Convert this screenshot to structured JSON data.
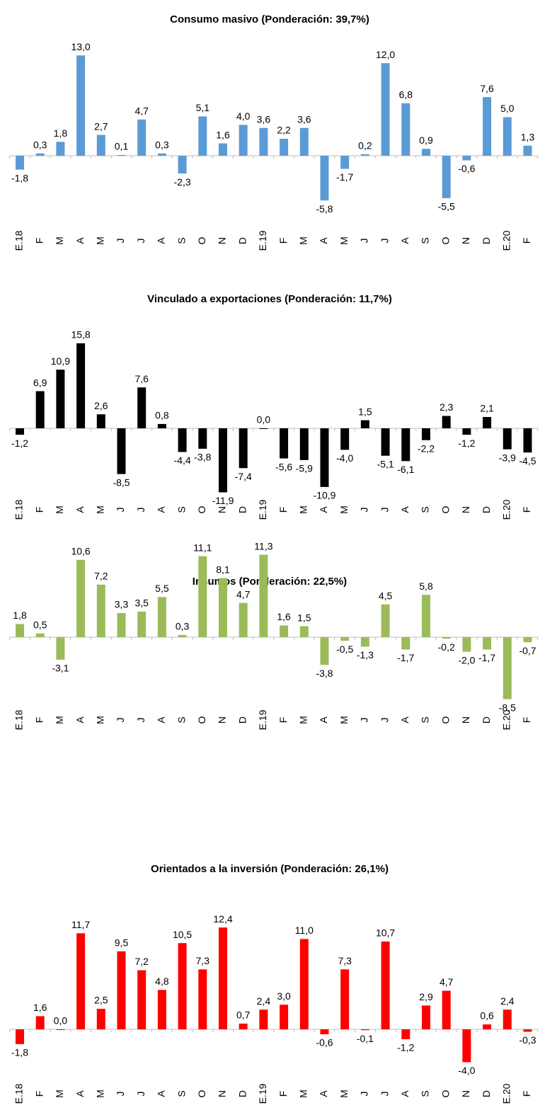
{
  "chart_data": [
    {
      "type": "bar",
      "title": "Consumo masivo (Ponderación: 39,7%)",
      "color": "#5b9bd5",
      "categories": [
        "E.18",
        "F",
        "M",
        "A",
        "M",
        "J",
        "J",
        "A",
        "S",
        "O",
        "N",
        "D",
        "E.19",
        "F",
        "M",
        "A",
        "M",
        "J",
        "J",
        "A",
        "S",
        "O",
        "N",
        "D",
        "E.20",
        "F"
      ],
      "values": [
        -1.8,
        0.3,
        1.8,
        13.0,
        2.7,
        0.1,
        4.7,
        0.3,
        -2.3,
        5.1,
        1.6,
        4.0,
        3.6,
        2.2,
        3.6,
        -5.8,
        -1.7,
        0.2,
        12.0,
        6.8,
        0.9,
        -5.5,
        -0.6,
        7.6,
        5.0,
        1.3
      ],
      "value_labels": [
        "-1,8",
        "0,3",
        "1,8",
        "13,0",
        "2,7",
        "0,1",
        "4,7",
        "0,3",
        "-2,3",
        "5,1",
        "1,6",
        "4,0",
        "3,6",
        "2,2",
        "3,6",
        "-5,8",
        "-1,7",
        "0,2",
        "12,0",
        "6,8",
        "0,9",
        "-5,5",
        "-0,6",
        "7,6",
        "5,0",
        "1,3"
      ]
    },
    {
      "type": "bar",
      "title": "Vinculado a exportaciones (Ponderación: 11,7%)",
      "color": "#000000",
      "categories": [
        "E.18",
        "F",
        "M",
        "A",
        "M",
        "J",
        "J",
        "A",
        "S",
        "O",
        "N",
        "D",
        "E.19",
        "F",
        "M",
        "A",
        "M",
        "J",
        "J",
        "A",
        "S",
        "O",
        "N",
        "D",
        "E.20",
        "F"
      ],
      "values": [
        -1.2,
        6.9,
        10.9,
        15.8,
        2.6,
        -8.5,
        7.6,
        0.8,
        -4.4,
        -3.8,
        -11.9,
        -7.4,
        0.0,
        -5.6,
        -5.9,
        -10.9,
        -4.0,
        1.5,
        -5.1,
        -6.1,
        -2.2,
        2.3,
        -1.2,
        2.1,
        -3.9,
        -4.5
      ],
      "value_labels": [
        "-1,2",
        "6,9",
        "10,9",
        "15,8",
        "2,6",
        "-8,5",
        "7,6",
        "0,8",
        "-4,4",
        "-3,8",
        "-11,9",
        "-7,4",
        "0,0",
        "-5,6",
        "-5,9",
        "-10,9",
        "-4,0",
        "1,5",
        "-5,1",
        "-6,1",
        "-2,2",
        "2,3",
        "-1,2",
        "2,1",
        "-3,9",
        "-4,5"
      ]
    },
    {
      "type": "bar",
      "title": "Insumos (Ponderación: 22,5%)",
      "color": "#9bbb59",
      "categories": [
        "E.18",
        "F",
        "M",
        "A",
        "M",
        "J",
        "J",
        "A",
        "S",
        "O",
        "N",
        "D",
        "E.19",
        "F",
        "M",
        "A",
        "M",
        "J",
        "J",
        "A",
        "S",
        "O",
        "N",
        "D",
        "E.20",
        "F"
      ],
      "values": [
        1.8,
        0.5,
        -3.1,
        10.6,
        7.2,
        3.3,
        3.5,
        5.5,
        0.3,
        11.1,
        8.1,
        4.7,
        11.3,
        1.6,
        1.5,
        -3.8,
        -0.5,
        -1.3,
        4.5,
        -1.7,
        5.8,
        -0.2,
        -2.0,
        -1.7,
        -8.5,
        -0.7
      ],
      "value_labels": [
        "1,8",
        "0,5",
        "-3,1",
        "10,6",
        "7,2",
        "3,3",
        "3,5",
        "5,5",
        "0,3",
        "11,1",
        "8,1",
        "4,7",
        "11,3",
        "1,6",
        "1,5",
        "-3,8",
        "-0,5",
        "-1,3",
        "4,5",
        "-1,7",
        "5,8",
        "-0,2",
        "-2,0",
        "-1,7",
        "-8,5",
        "-0,7"
      ]
    },
    {
      "type": "bar",
      "title": "Orientados a la inversión (Ponderación: 26,1%)",
      "color": "#ff0000",
      "categories": [
        "E.18",
        "F",
        "M",
        "A",
        "M",
        "J",
        "J",
        "A",
        "S",
        "O",
        "N",
        "D",
        "E.19",
        "F",
        "M",
        "A",
        "M",
        "J",
        "J",
        "A",
        "S",
        "O",
        "N",
        "D",
        "E.20",
        "F"
      ],
      "values": [
        -1.8,
        1.6,
        0.0,
        11.7,
        2.5,
        9.5,
        7.2,
        4.8,
        10.5,
        7.3,
        12.4,
        0.7,
        2.4,
        3.0,
        11.0,
        -0.6,
        7.3,
        -0.1,
        10.7,
        -1.2,
        2.9,
        4.7,
        -4.0,
        0.6,
        2.4,
        -0.3
      ],
      "value_labels": [
        "-1,8",
        "1,6",
        "0,0",
        "11,7",
        "2,5",
        "9,5",
        "7,2",
        "4,8",
        "10,5",
        "7,3",
        "12,4",
        "0,7",
        "2,4",
        "3,0",
        "11,0",
        "-0,6",
        "7,3",
        "-0,1",
        "10,7",
        "-1,2",
        "2,9",
        "4,7",
        "-4,0",
        "0,6",
        "2,4",
        "-0,3"
      ]
    }
  ]
}
